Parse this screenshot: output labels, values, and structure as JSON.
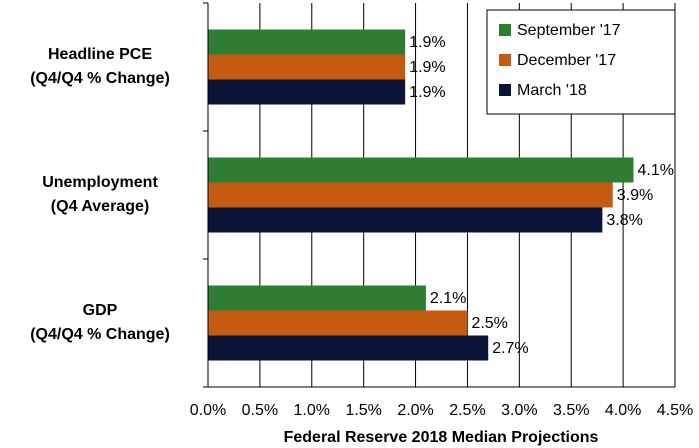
{
  "chart_data": {
    "type": "bar",
    "orientation": "horizontal",
    "xlabel": "Federal Reserve 2018 Median Projections",
    "categories": [
      [
        "Headline PCE",
        "(Q4/Q4 % Change)"
      ],
      [
        "Unemployment",
        "(Q4 Average)"
      ],
      [
        "GDP",
        "(Q4/Q4 % Change)"
      ]
    ],
    "series": [
      {
        "name": "September '17",
        "color": "#2e7d32",
        "values": [
          1.9,
          4.1,
          2.1
        ],
        "value_labels": [
          "1.9%",
          "4.1%",
          "2.1%"
        ]
      },
      {
        "name": "December '17",
        "color": "#c55a11",
        "values": [
          1.9,
          3.9,
          2.5
        ],
        "value_labels": [
          "1.9%",
          "3.9%",
          "2.5%"
        ]
      },
      {
        "name": "March '18",
        "color": "#0b1437",
        "values": [
          1.9,
          3.8,
          2.7
        ],
        "value_labels": [
          "1.9%",
          "3.8%",
          "2.7%"
        ]
      }
    ],
    "xlim": [
      0,
      4.5
    ],
    "xticks": [
      {
        "value": 0,
        "label": "0.0%"
      },
      {
        "value": 0.5,
        "label": "0.5%"
      },
      {
        "value": 1,
        "label": "1.0%"
      },
      {
        "value": 1.5,
        "label": "1.5%"
      },
      {
        "value": 2,
        "label": "2.0%"
      },
      {
        "value": 2.5,
        "label": "2.5%"
      },
      {
        "value": 3,
        "label": "3.0%"
      },
      {
        "value": 3.5,
        "label": "3.5%"
      },
      {
        "value": 4,
        "label": "4.0%"
      },
      {
        "value": 4.5,
        "label": "4.5%"
      }
    ],
    "grid": true,
    "legend": "upper right"
  }
}
